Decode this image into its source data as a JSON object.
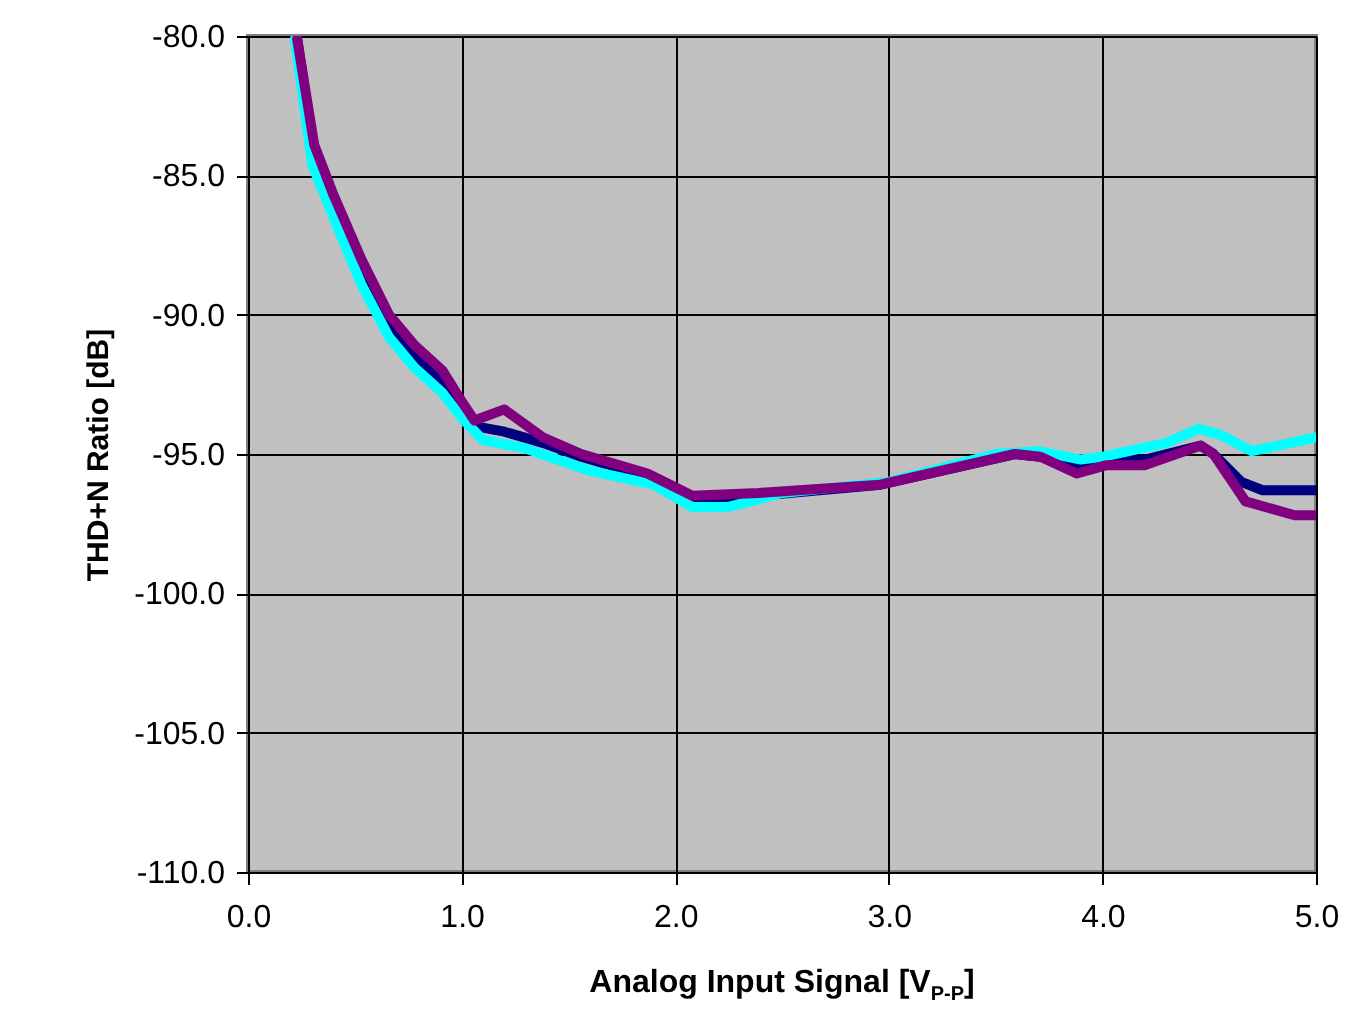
{
  "chart_data": {
    "type": "line",
    "xlabel": "Analog Input Signal [V$_{P-P}$]",
    "ylabel": "THD+N Ratio [dB]",
    "xlim": [
      0,
      5
    ],
    "ylim": [
      -110,
      -80
    ],
    "xticks": [
      {
        "value": 0,
        "label": "0.0"
      },
      {
        "value": 1,
        "label": "1.0"
      },
      {
        "value": 2,
        "label": "2.0"
      },
      {
        "value": 3,
        "label": "3.0"
      },
      {
        "value": 4,
        "label": "4.0"
      },
      {
        "value": 5,
        "label": "5.0"
      }
    ],
    "yticks": [
      {
        "value": -110,
        "label": "-110.0"
      },
      {
        "value": -105,
        "label": "-105.0"
      },
      {
        "value": -100,
        "label": "-100.0"
      },
      {
        "value": -95,
        "label": "-95.0"
      },
      {
        "value": -90,
        "label": "-90.0"
      },
      {
        "value": -85,
        "label": "-85.0"
      },
      {
        "value": -80,
        "label": "-80.0"
      }
    ],
    "grid": true,
    "line_style": "solid",
    "marker": "none",
    "series": [
      {
        "color": "#000080",
        "x": [
          0.23,
          0.31,
          0.4,
          0.53,
          0.66,
          0.78,
          0.91,
          1.0,
          1.06,
          1.2,
          1.38,
          1.56,
          1.87,
          2.08,
          2.39,
          2.96,
          3.59,
          3.71,
          3.88,
          4.02,
          4.2,
          4.46,
          4.52,
          4.65,
          4.75,
          5.0
        ],
        "values": [
          -80.1,
          -84.2,
          -86.0,
          -88.4,
          -90.4,
          -91.5,
          -92.4,
          -93.4,
          -94.0,
          -94.2,
          -94.6,
          -95.1,
          -95.8,
          -96.6,
          -96.5,
          -96.1,
          -95.0,
          -95.1,
          -95.4,
          -95.3,
          -95.2,
          -94.7,
          -95.0,
          -96.0,
          -96.3,
          -96.3
        ]
      },
      {
        "color": "#00ffff",
        "x": [
          0.22,
          0.3,
          0.4,
          0.53,
          0.66,
          0.78,
          0.91,
          1.0,
          1.1,
          1.3,
          1.6,
          1.9,
          2.08,
          2.25,
          2.5,
          3.0,
          3.5,
          3.7,
          3.9,
          4.0,
          4.3,
          4.45,
          4.55,
          4.7,
          5.0
        ],
        "values": [
          -80.1,
          -84.6,
          -86.5,
          -88.9,
          -90.8,
          -91.9,
          -92.8,
          -93.7,
          -94.5,
          -94.8,
          -95.6,
          -96.1,
          -96.9,
          -96.9,
          -96.4,
          -96.0,
          -95.0,
          -94.9,
          -95.2,
          -95.1,
          -94.6,
          -94.1,
          -94.3,
          -94.9,
          -94.4
        ]
      },
      {
        "color": "#800080",
        "x": [
          0.23,
          0.31,
          0.4,
          0.53,
          0.66,
          0.78,
          0.91,
          1.0,
          1.06,
          1.2,
          1.38,
          1.56,
          1.87,
          2.08,
          2.39,
          2.96,
          3.59,
          3.71,
          3.88,
          4.02,
          4.2,
          4.46,
          4.52,
          4.67,
          4.9,
          5.0
        ],
        "values": [
          -80.1,
          -83.9,
          -85.7,
          -88.0,
          -90.0,
          -91.1,
          -92.0,
          -93.1,
          -93.8,
          -93.4,
          -94.4,
          -95.0,
          -95.7,
          -96.5,
          -96.4,
          -96.1,
          -95.0,
          -95.1,
          -95.7,
          -95.4,
          -95.4,
          -94.7,
          -95.0,
          -96.7,
          -97.2,
          -97.2
        ]
      }
    ]
  }
}
